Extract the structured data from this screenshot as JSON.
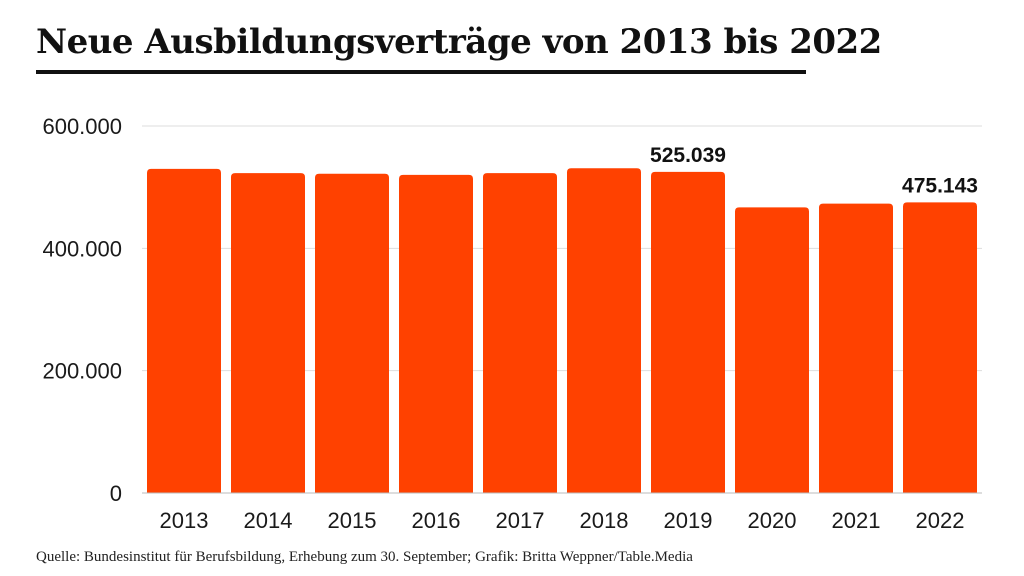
{
  "title": "Neue Ausbildungsverträge von 2013 bis 2022",
  "source": "Quelle: Bundesinstitut für Berufsbildung, Erhebung zum 30. September; Grafik: Britta Weppner/Table.Media",
  "colors": {
    "bar": "#ff4100",
    "grid": "#dddddd",
    "text": "#1a1a1a"
  },
  "chart_data": {
    "type": "bar",
    "categories": [
      "2013",
      "2014",
      "2015",
      "2016",
      "2017",
      "2018",
      "2019",
      "2020",
      "2021",
      "2022"
    ],
    "values": [
      530000,
      523000,
      522000,
      520000,
      523000,
      531000,
      525039,
      467000,
      473000,
      475143
    ],
    "data_labels": [
      {
        "category": "2019",
        "text": "525.039"
      },
      {
        "category": "2022",
        "text": "475.143"
      }
    ],
    "y_ticks": [
      {
        "value": 0,
        "label": "0"
      },
      {
        "value": 200000,
        "label": "200.000"
      },
      {
        "value": 400000,
        "label": "400.000"
      },
      {
        "value": 600000,
        "label": "600.000"
      }
    ],
    "ylim": [
      0,
      600000
    ],
    "grid": true,
    "legend": "none",
    "xlabel": "",
    "ylabel": ""
  }
}
